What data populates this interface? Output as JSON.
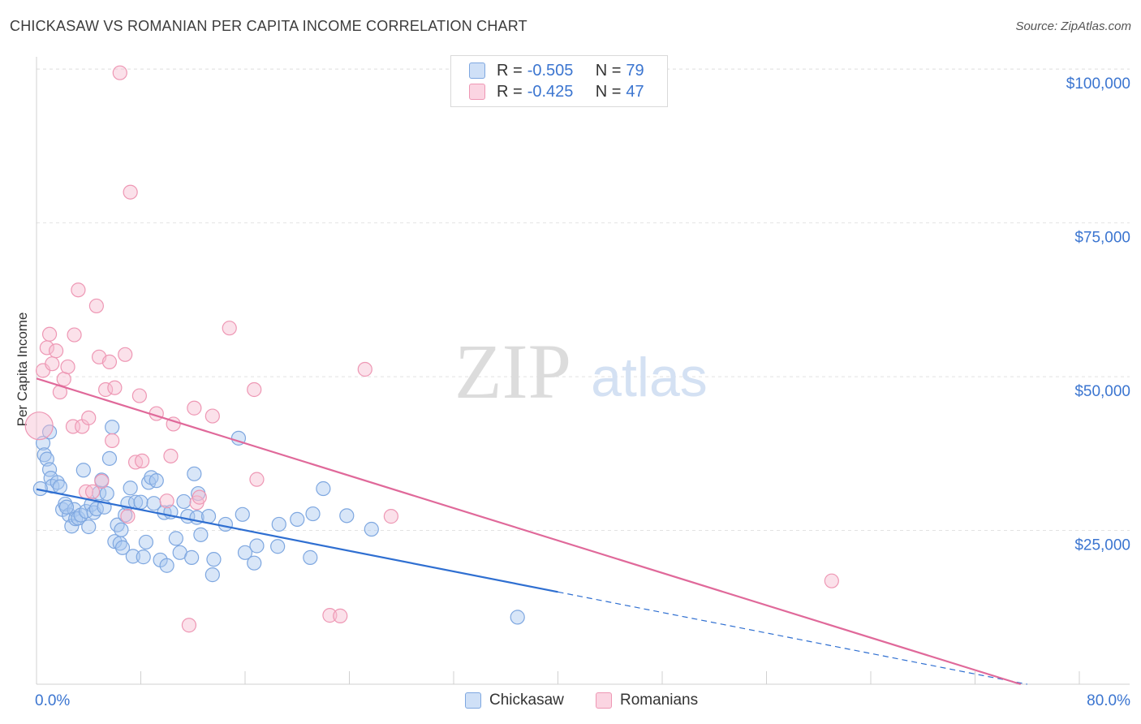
{
  "title": "CHICKASAW VS ROMANIAN PER CAPITA INCOME CORRELATION CHART",
  "source": "Source: ZipAtlas.com",
  "watermark": {
    "zip": "ZIP",
    "atlas": "atlas"
  },
  "legend": {
    "rows": [
      {
        "r_label": "R = ",
        "r_value": "-0.505",
        "n_label": "N = ",
        "n_value": "79",
        "color": "#a9c8f0",
        "border": "#7ea7e0"
      },
      {
        "r_label": "R = ",
        "r_value": "-0.425",
        "n_label": "N = ",
        "n_value": "47",
        "color": "#f7bcd0",
        "border": "#ee97b4"
      }
    ]
  },
  "bottom_legend": [
    {
      "label": "Chickasaw",
      "color": "#a9c8f0",
      "border": "#7ea7e0"
    },
    {
      "label": "Romanians",
      "color": "#f7bcd0",
      "border": "#ee97b4"
    }
  ],
  "chart_data": {
    "type": "scatter",
    "title": "CHICKASAW VS ROMANIAN PER CAPITA INCOME CORRELATION CHART",
    "xlabel": "",
    "ylabel": "Per Capita Income",
    "xlim": [
      0,
      80
    ],
    "ylim": [
      0,
      102000
    ],
    "x_tick_labels": [
      "0.0%",
      "80.0%"
    ],
    "y_ticks": [
      25000,
      50000,
      75000,
      100000
    ],
    "y_tick_labels": [
      "$25,000",
      "$50,000",
      "$75,000",
      "$100,000"
    ],
    "grid": true,
    "legend_position": "top-center",
    "series": [
      {
        "name": "Chickasaw",
        "color": "#7ea7e0",
        "fill": "rgba(169,200,240,0.45)",
        "trend_color": "#2f6fd1",
        "trend": {
          "x0": 0,
          "y0": 31700,
          "x1": 40,
          "y1": 15000,
          "dash_to_x": 76,
          "dash_to_y": 0
        },
        "points": [
          [
            0.5,
            39200
          ],
          [
            0.6,
            37300
          ],
          [
            0.8,
            36600
          ],
          [
            1.0,
            34900
          ],
          [
            1.1,
            33500
          ],
          [
            1.2,
            32200
          ],
          [
            1.6,
            32800
          ],
          [
            1.8,
            32100
          ],
          [
            2.0,
            28400
          ],
          [
            2.2,
            29300
          ],
          [
            2.5,
            27500
          ],
          [
            2.7,
            25700
          ],
          [
            2.9,
            28400
          ],
          [
            3.0,
            26900
          ],
          [
            3.2,
            27000
          ],
          [
            3.4,
            27500
          ],
          [
            3.6,
            34800
          ],
          [
            3.8,
            28100
          ],
          [
            4.0,
            25600
          ],
          [
            4.2,
            29200
          ],
          [
            4.4,
            27900
          ],
          [
            4.6,
            28500
          ],
          [
            4.8,
            31100
          ],
          [
            5.0,
            33200
          ],
          [
            5.2,
            28800
          ],
          [
            5.4,
            31000
          ],
          [
            5.6,
            36700
          ],
          [
            5.8,
            41800
          ],
          [
            6.0,
            23200
          ],
          [
            6.2,
            25900
          ],
          [
            6.4,
            22900
          ],
          [
            6.6,
            22200
          ],
          [
            6.8,
            27500
          ],
          [
            7.0,
            29400
          ],
          [
            7.2,
            31900
          ],
          [
            7.4,
            20800
          ],
          [
            7.6,
            29600
          ],
          [
            8.0,
            29600
          ],
          [
            8.2,
            20700
          ],
          [
            8.4,
            23100
          ],
          [
            8.6,
            32800
          ],
          [
            8.8,
            33600
          ],
          [
            9.0,
            29400
          ],
          [
            9.2,
            33100
          ],
          [
            9.5,
            20200
          ],
          [
            9.8,
            27900
          ],
          [
            10.0,
            19300
          ],
          [
            10.3,
            28000
          ],
          [
            10.7,
            23700
          ],
          [
            11.0,
            21400
          ],
          [
            11.3,
            29700
          ],
          [
            11.6,
            27300
          ],
          [
            11.9,
            20600
          ],
          [
            12.1,
            34200
          ],
          [
            12.3,
            27100
          ],
          [
            12.4,
            31000
          ],
          [
            12.6,
            24300
          ],
          [
            13.2,
            27300
          ],
          [
            13.5,
            17800
          ],
          [
            13.6,
            20300
          ],
          [
            14.5,
            26000
          ],
          [
            15.5,
            40000
          ],
          [
            15.8,
            27600
          ],
          [
            16.0,
            21400
          ],
          [
            16.7,
            19700
          ],
          [
            16.9,
            22500
          ],
          [
            18.5,
            22400
          ],
          [
            18.6,
            26000
          ],
          [
            20.0,
            26800
          ],
          [
            21.0,
            20600
          ],
          [
            21.2,
            27700
          ],
          [
            22.0,
            31800
          ],
          [
            23.8,
            27400
          ],
          [
            25.7,
            25200
          ],
          [
            36.9,
            10900
          ],
          [
            1.0,
            41000
          ],
          [
            2.3,
            28800
          ],
          [
            6.5,
            25100
          ],
          [
            0.3,
            31800
          ]
        ]
      },
      {
        "name": "Romanians",
        "color": "#ee97b4",
        "fill": "rgba(247,188,208,0.45)",
        "trend_color": "#e0699a",
        "trend": {
          "x0": 0,
          "y0": 49700,
          "x1": 75.5,
          "y1": 0
        },
        "points": [
          [
            0.2,
            42000
          ],
          [
            0.5,
            51000
          ],
          [
            0.8,
            54700
          ],
          [
            1.0,
            56900
          ],
          [
            1.2,
            52100
          ],
          [
            1.5,
            54200
          ],
          [
            1.8,
            47500
          ],
          [
            2.1,
            49600
          ],
          [
            2.4,
            51600
          ],
          [
            2.8,
            41900
          ],
          [
            2.9,
            56800
          ],
          [
            3.2,
            64100
          ],
          [
            3.5,
            41900
          ],
          [
            3.8,
            31300
          ],
          [
            4.0,
            43300
          ],
          [
            4.3,
            31300
          ],
          [
            4.6,
            61500
          ],
          [
            4.8,
            53200
          ],
          [
            5.0,
            33000
          ],
          [
            5.3,
            47900
          ],
          [
            5.6,
            52400
          ],
          [
            5.8,
            39600
          ],
          [
            6.0,
            48200
          ],
          [
            6.4,
            99400
          ],
          [
            6.8,
            53600
          ],
          [
            7.0,
            27300
          ],
          [
            7.2,
            80000
          ],
          [
            7.6,
            36100
          ],
          [
            7.9,
            46900
          ],
          [
            8.1,
            36300
          ],
          [
            9.2,
            44000
          ],
          [
            10.0,
            29800
          ],
          [
            10.3,
            37100
          ],
          [
            10.5,
            42300
          ],
          [
            11.7,
            9600
          ],
          [
            12.1,
            44900
          ],
          [
            12.3,
            29500
          ],
          [
            12.5,
            30400
          ],
          [
            13.5,
            43600
          ],
          [
            14.8,
            57900
          ],
          [
            16.7,
            47900
          ],
          [
            16.9,
            33300
          ],
          [
            22.5,
            11200
          ],
          [
            23.3,
            11100
          ],
          [
            25.2,
            51200
          ],
          [
            27.2,
            27300
          ],
          [
            61.0,
            16800
          ]
        ]
      }
    ]
  }
}
